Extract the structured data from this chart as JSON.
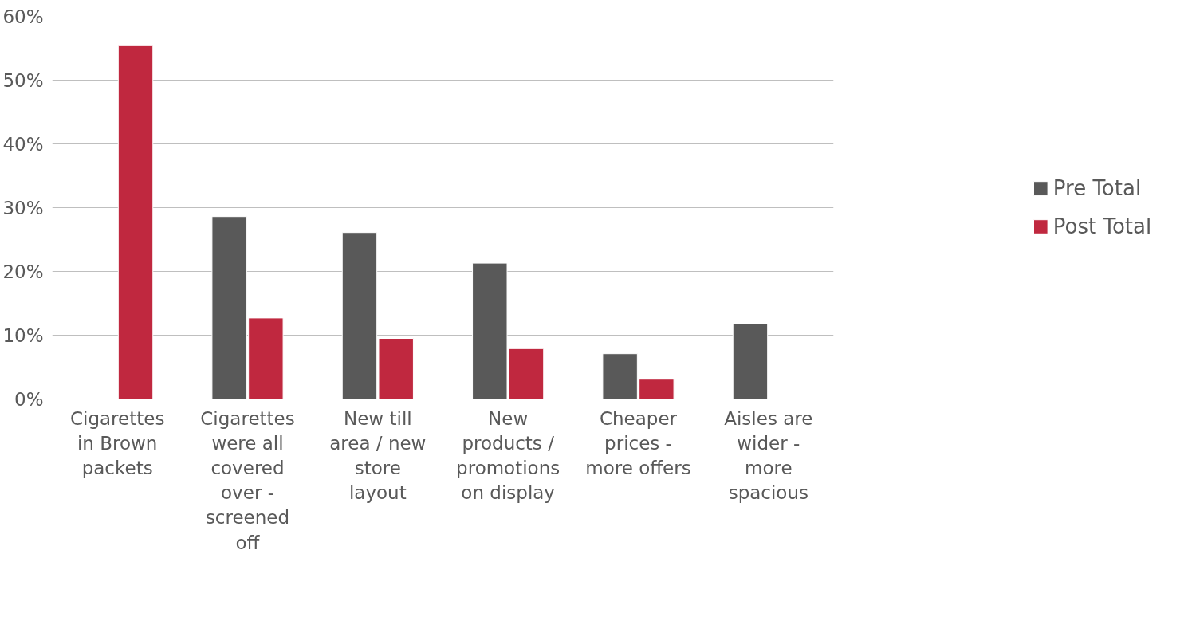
{
  "chart_data": {
    "type": "bar",
    "categories": [
      "Cigarettes in Brown packets",
      "Cigarettes were all covered over - screened off",
      "New till area / new store layout",
      "New products / promotions on display",
      "Cheaper prices - more offers",
      "Aisles are wider - more spacious"
    ],
    "series": [
      {
        "name": "Pre Total",
        "color": "#595959",
        "values": [
          null,
          28.6,
          26.1,
          21.3,
          7.1,
          11.8
        ]
      },
      {
        "name": "Post Total",
        "color": "#c0283f",
        "values": [
          55.4,
          12.7,
          9.5,
          7.9,
          3.1,
          null
        ]
      }
    ],
    "ylim": [
      0,
      60
    ],
    "yticks": [
      {
        "value": 0,
        "label": "0%"
      },
      {
        "value": 10,
        "label": "10%"
      },
      {
        "value": 20,
        "label": "20%"
      },
      {
        "value": 30,
        "label": "30%"
      },
      {
        "value": 40,
        "label": "40%"
      },
      {
        "value": 50,
        "label": "50%"
      },
      {
        "value": 60,
        "label": "60%"
      }
    ],
    "grid": "y",
    "legend": "right"
  }
}
